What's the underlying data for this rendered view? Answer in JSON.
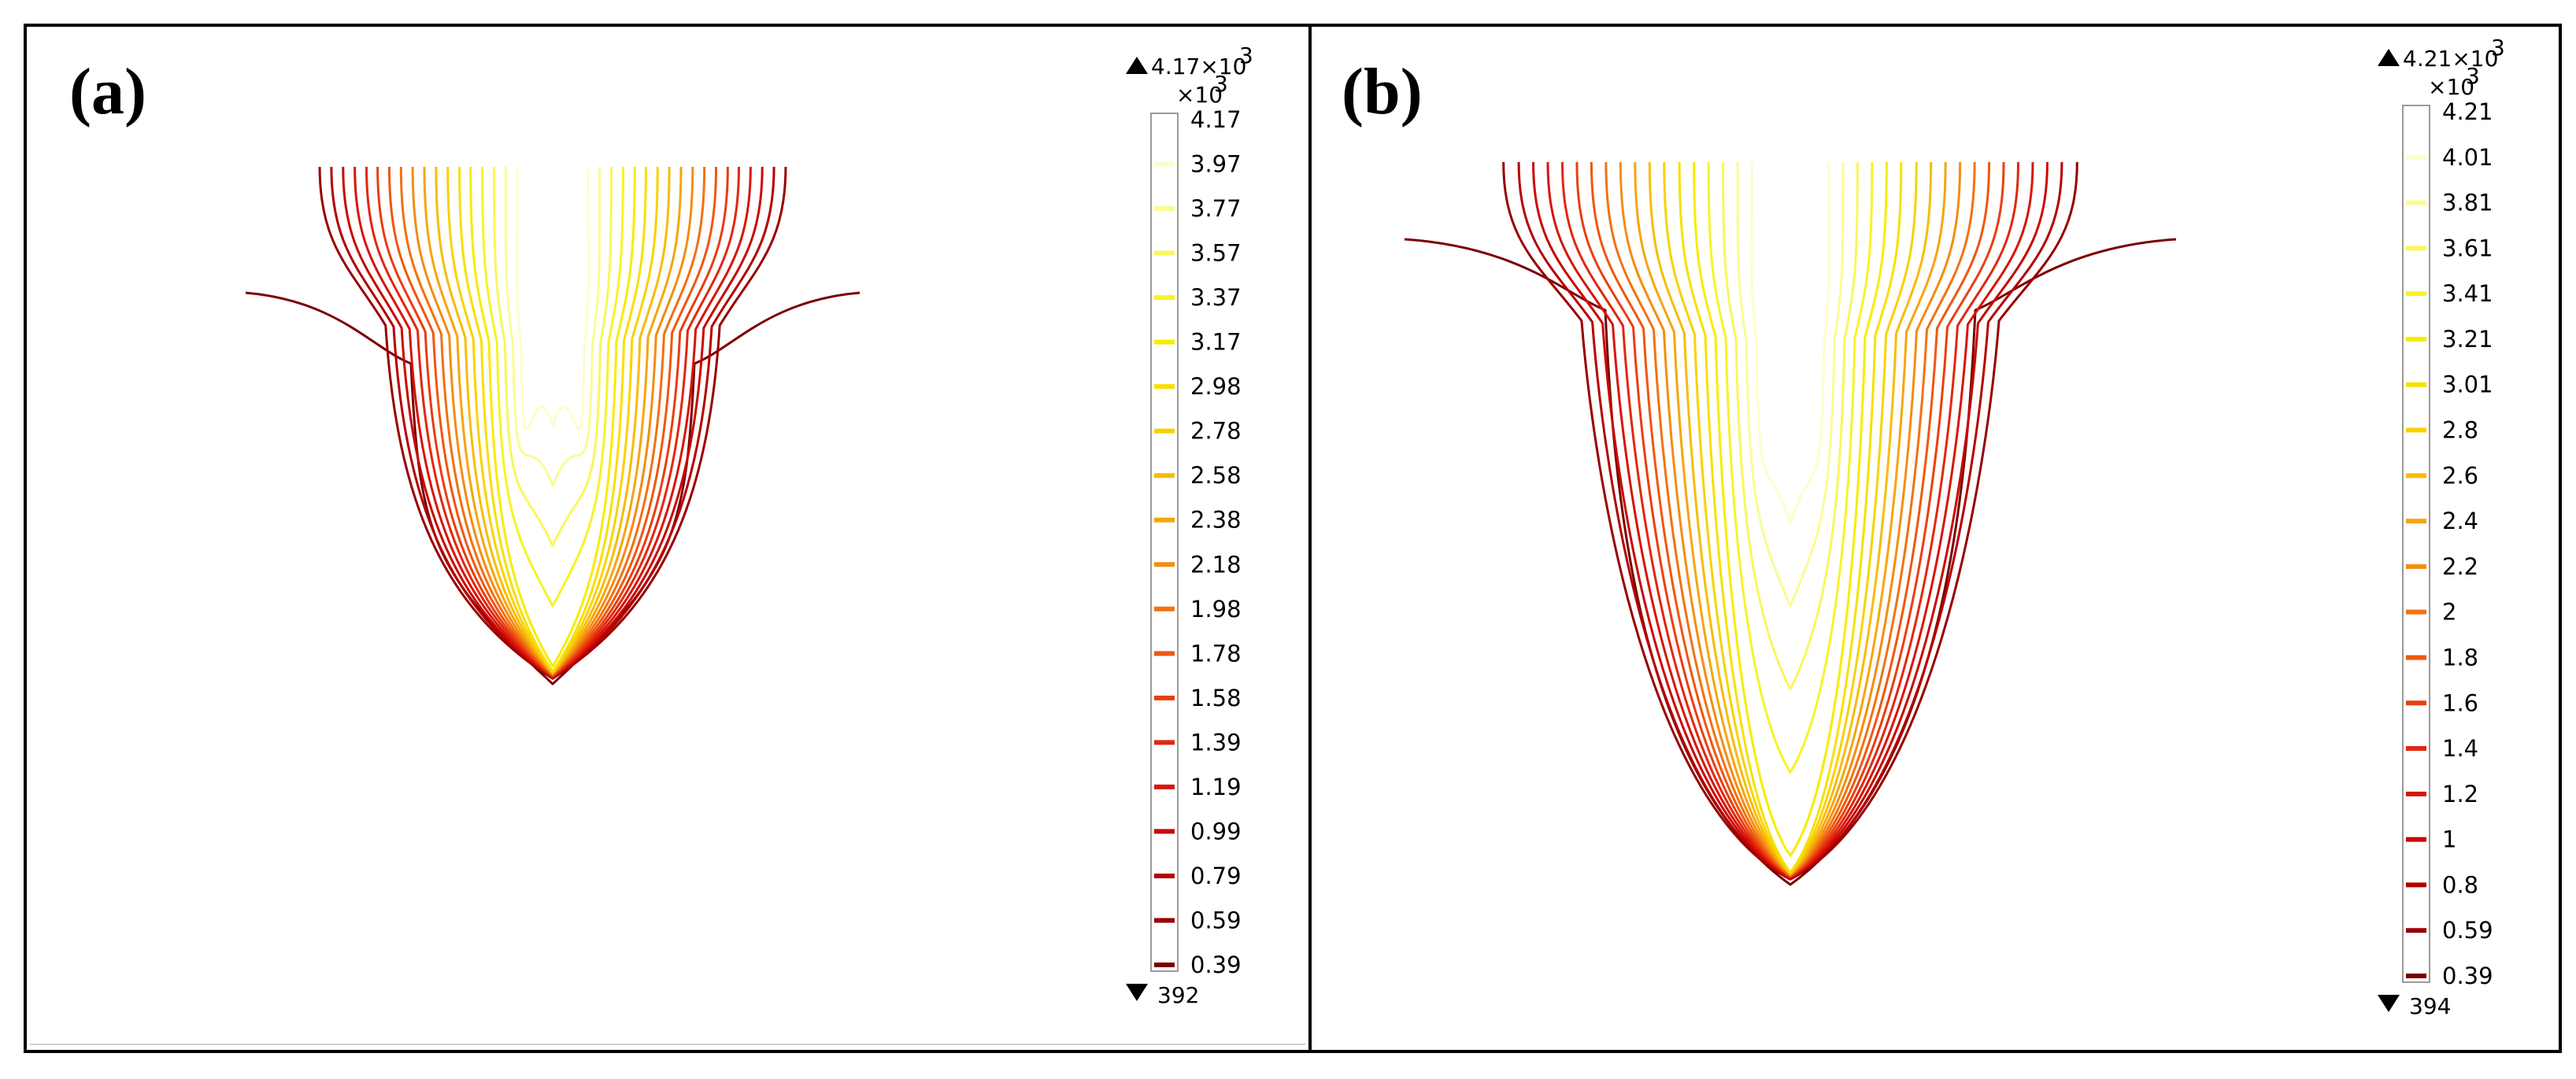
{
  "panels": [
    {
      "label": "(a)",
      "max_label": "4.17×10",
      "max_sup": "3",
      "unit_label": "×10",
      "unit_sup": "3",
      "min_label": "392",
      "tick_labels": [
        "4.17",
        "3.97",
        "3.77",
        "3.57",
        "3.37",
        "3.17",
        "2.98",
        "2.78",
        "2.58",
        "2.38",
        "2.18",
        "1.98",
        "1.78",
        "1.58",
        "1.39",
        "1.19",
        "0.99",
        "0.79",
        "0.59",
        "0.39"
      ]
    },
    {
      "label": "(b)",
      "max_label": "4.21×10",
      "max_sup": "3",
      "unit_label": "×10",
      "unit_sup": "3",
      "min_label": "394",
      "tick_labels": [
        "4.21",
        "4.01",
        "3.81",
        "3.61",
        "3.41",
        "3.21",
        "3.01",
        "2.8",
        "2.6",
        "2.4",
        "2.2",
        "2",
        "1.8",
        "1.6",
        "1.4",
        "1.2",
        "1",
        "0.8",
        "0.59",
        "0.39"
      ]
    }
  ],
  "chart_data": [
    {
      "type": "contour",
      "title": "(a)",
      "colorbar_max": 4170,
      "colorbar_min": 392,
      "levels": [
        4.17,
        3.97,
        3.77,
        3.57,
        3.37,
        3.17,
        2.98,
        2.78,
        2.58,
        2.38,
        2.18,
        1.98,
        1.78,
        1.58,
        1.39,
        1.19,
        0.99,
        0.79,
        0.59,
        0.39
      ],
      "levels_scale": "×10^3",
      "colormap": "heat (dark red → red → orange → yellow → white)",
      "color_stops": [
        "#7a0000",
        "#c00000",
        "#e02010",
        "#f05a10",
        "#f59a10",
        "#f8d000",
        "#f6f000",
        "#fafa80",
        "#ffffff"
      ]
    },
    {
      "type": "contour",
      "title": "(b)",
      "colorbar_max": 4210,
      "colorbar_min": 394,
      "levels": [
        4.21,
        4.01,
        3.81,
        3.61,
        3.41,
        3.21,
        3.01,
        2.8,
        2.6,
        2.4,
        2.2,
        2,
        1.8,
        1.6,
        1.4,
        1.2,
        1,
        0.8,
        0.59,
        0.39
      ],
      "levels_scale": "×10^3",
      "colormap": "heat (dark red → red → orange → yellow → white)",
      "color_stops": [
        "#7a0000",
        "#c00000",
        "#e02010",
        "#f05a10",
        "#f59a10",
        "#f8d000",
        "#f6f000",
        "#fafa80",
        "#ffffff"
      ]
    }
  ]
}
